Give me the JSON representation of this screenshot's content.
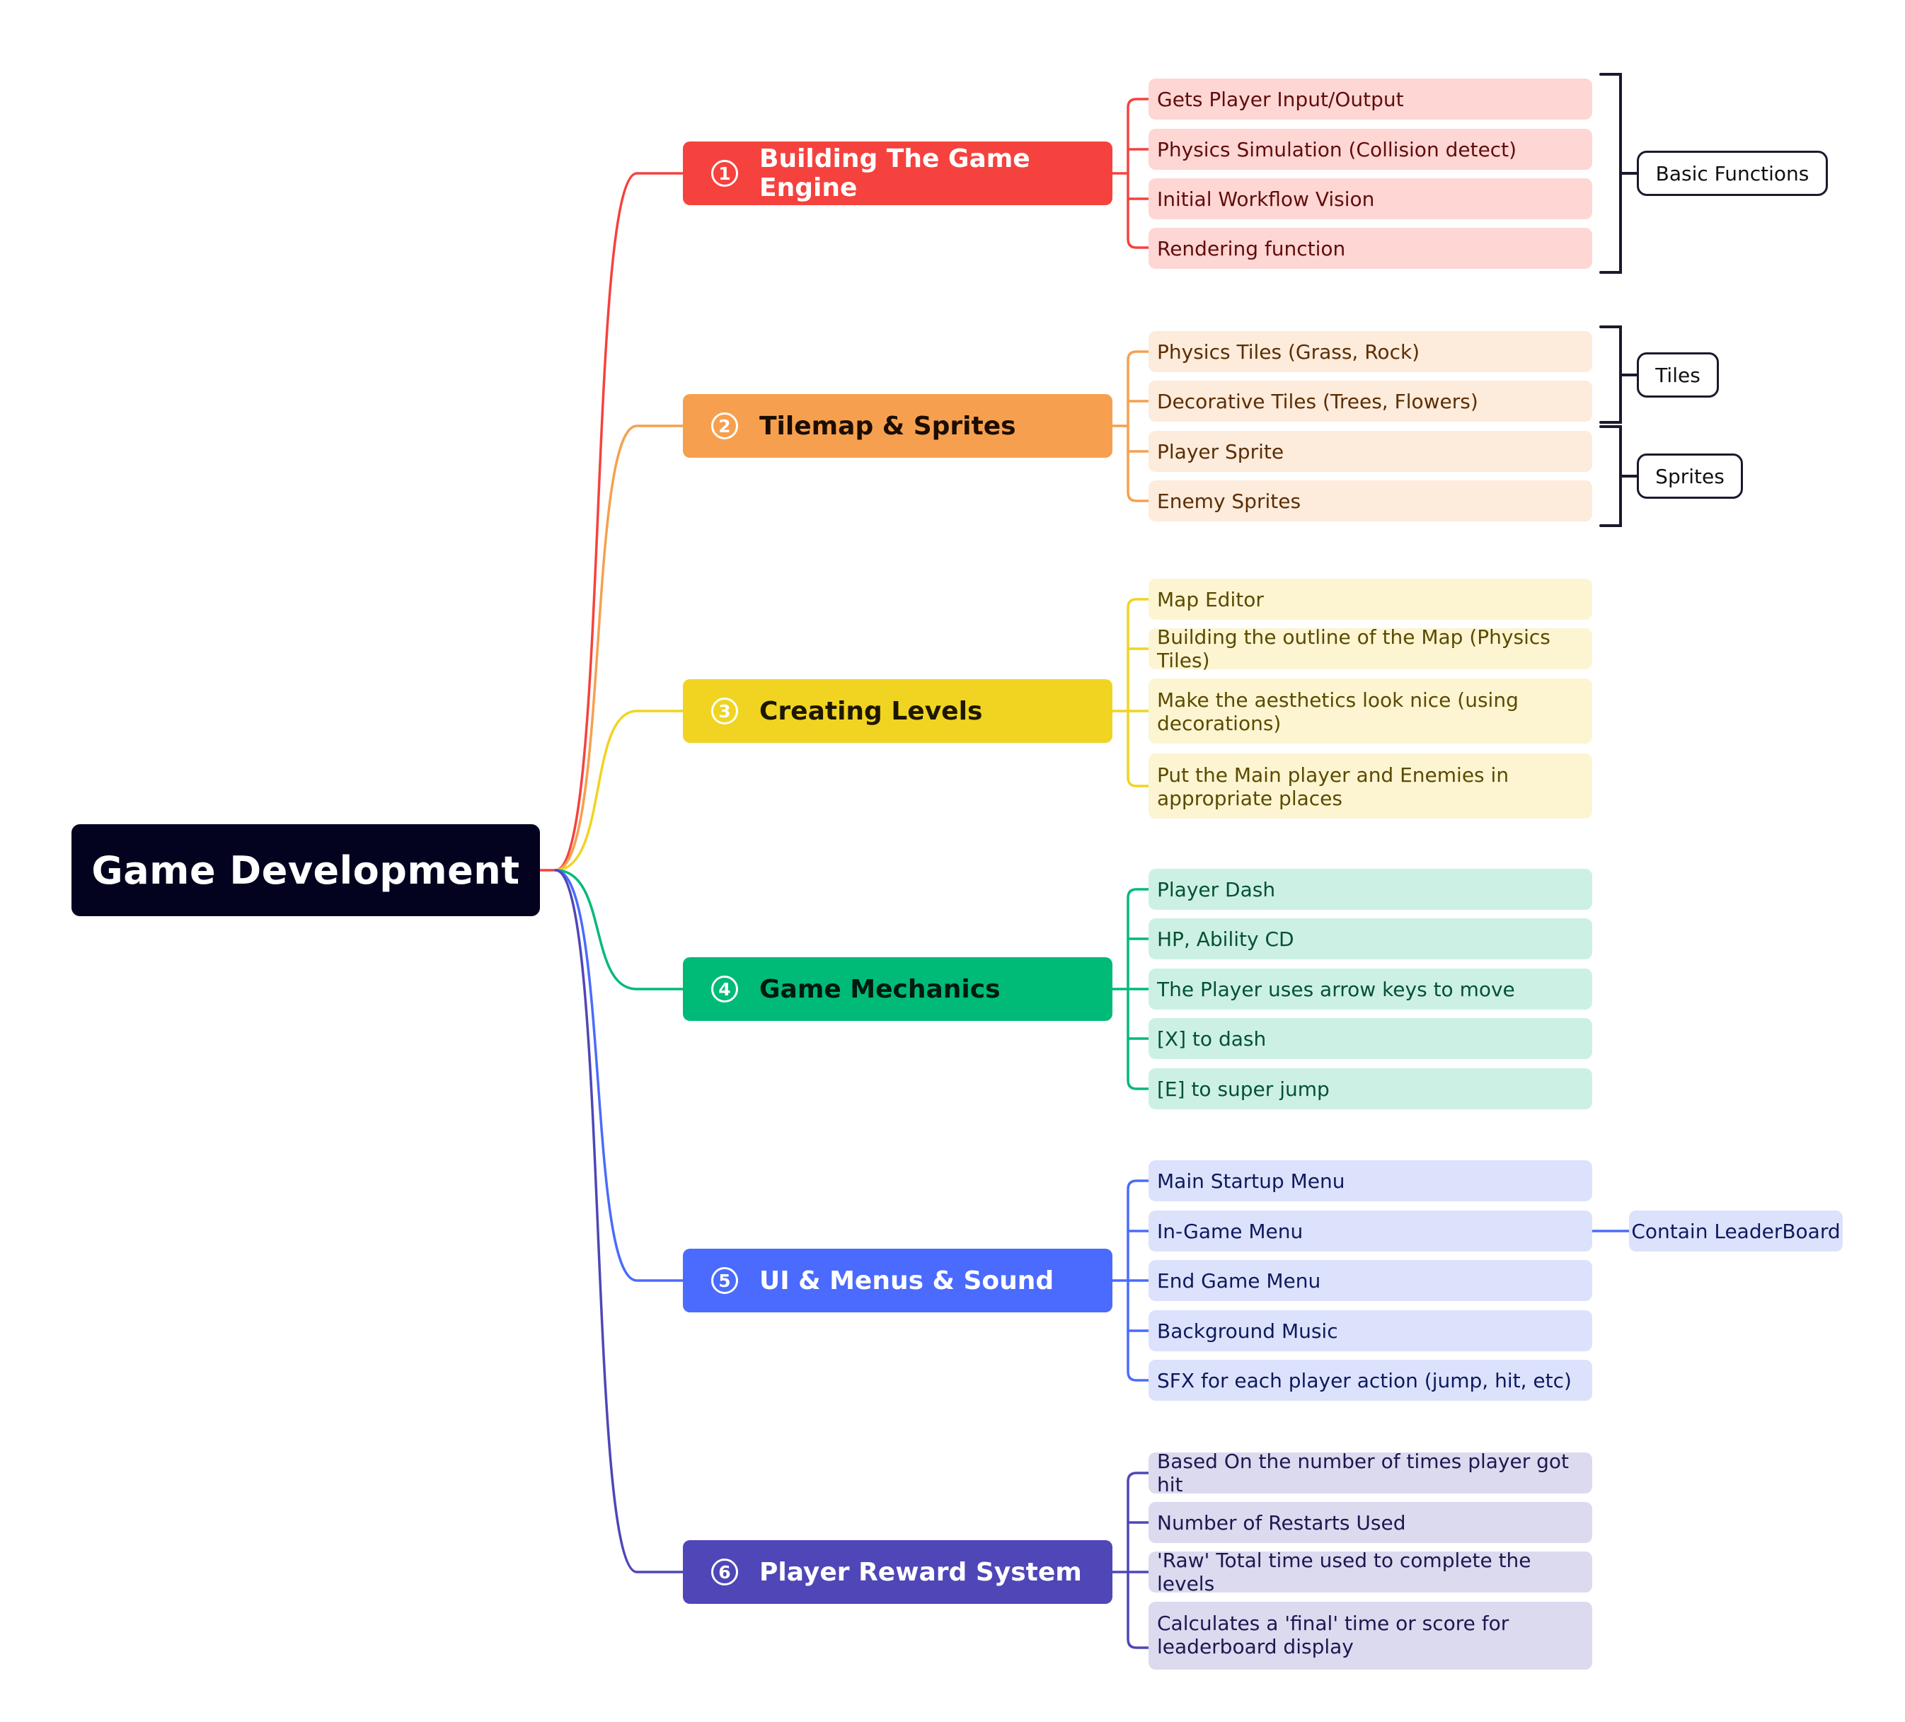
{
  "root": {
    "label": "Game Development"
  },
  "colors": {
    "red": "#f5423e",
    "orange": "#f6a04f",
    "yellow": "#f0d421",
    "green": "#00ba78",
    "blue": "#4a6bfd",
    "indigo": "#4f46b7",
    "root_bg": "#03021f"
  },
  "branches": [
    {
      "index": "1",
      "label": "Building The Game Engine",
      "leaves": [
        "Gets Player Input/Output",
        "Physics Simulation (Collision detect)",
        "Initial Workflow Vision",
        "Rendering function"
      ]
    },
    {
      "index": "2",
      "label": "Tilemap & Sprites",
      "leaves": [
        "Physics Tiles (Grass, Rock)",
        "Decorative Tiles (Trees, Flowers)",
        "Player Sprite",
        "Enemy Sprites"
      ]
    },
    {
      "index": "3",
      "label": "Creating Levels",
      "leaves": [
        "Map Editor",
        "Building the outline of the Map (Physics Tiles)",
        "Make the aesthetics look nice (using decorations)",
        "Put the Main player and Enemies in appropriate places"
      ]
    },
    {
      "index": "4",
      "label": "Game Mechanics",
      "leaves": [
        "Player Dash",
        "HP, Ability CD",
        "The Player uses arrow keys to move",
        "[X] to dash",
        "[E] to super jump"
      ]
    },
    {
      "index": "5",
      "label": "UI & Menus & Sound",
      "leaves": [
        "Main Startup Menu",
        "In-Game Menu",
        "End Game Menu",
        "Background Music",
        "SFX for each player action (jump, hit, etc)"
      ]
    },
    {
      "index": "6",
      "label": "Player Reward System",
      "leaves": [
        "Based On the number of times player got hit",
        "Number of Restarts Used",
        "'Raw' Total time used to complete the levels",
        "Calculates a 'final' time or score for leaderboard display"
      ]
    }
  ],
  "summaries": {
    "basic_functions": "Basic Functions",
    "tiles": "Tiles",
    "sprites": "Sprites"
  },
  "floating": {
    "contain_leaderboard": "Contain LeaderBoard"
  }
}
